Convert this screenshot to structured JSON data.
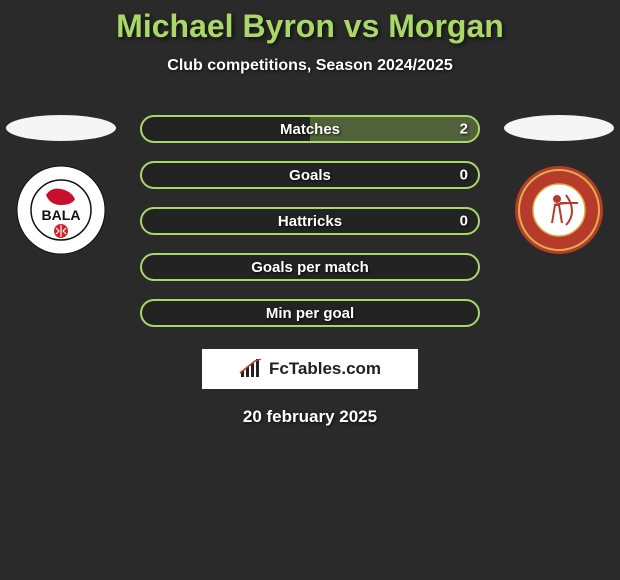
{
  "title": "Michael Byron vs Morgan",
  "subtitle": "Club competitions, Season 2024/2025",
  "date": "20 february 2025",
  "brand": "FcTables.com",
  "colors": {
    "accent": "#a9d867",
    "pill_border": "#a9d867",
    "fill": "rgba(169,216,103,0.35)",
    "background": "#2a2a2a"
  },
  "players": {
    "left": {
      "name": "Michael Byron",
      "club_badge": {
        "outer": "#ffffff",
        "ring_text_color": "#111111",
        "inner": "#ffffff",
        "accent": "#d61f26",
        "label": "BALA"
      }
    },
    "right": {
      "name": "Morgan",
      "club_badge": {
        "outer": "#b83a2a",
        "ring": "#d9b24a",
        "inner": "#ffffff",
        "accent": "#b83a2a"
      }
    }
  },
  "stats": [
    {
      "label": "Matches",
      "left_value": "",
      "right_value": "2",
      "left_fill_pct": 0,
      "right_fill_pct": 100
    },
    {
      "label": "Goals",
      "left_value": "",
      "right_value": "0",
      "left_fill_pct": 0,
      "right_fill_pct": 0
    },
    {
      "label": "Hattricks",
      "left_value": "",
      "right_value": "0",
      "left_fill_pct": 0,
      "right_fill_pct": 0
    },
    {
      "label": "Goals per match",
      "left_value": "",
      "right_value": "",
      "left_fill_pct": 0,
      "right_fill_pct": 0
    },
    {
      "label": "Min per goal",
      "left_value": "",
      "right_value": "",
      "left_fill_pct": 0,
      "right_fill_pct": 0
    }
  ]
}
